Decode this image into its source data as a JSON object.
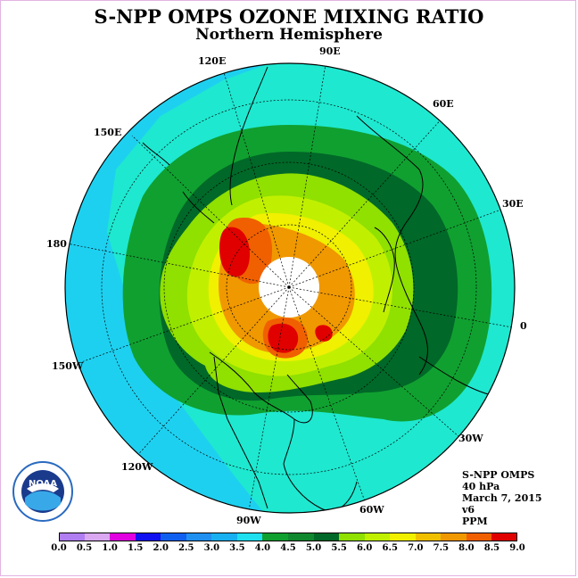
{
  "title": "S-NPP OMPS OZONE MIXING RATIO",
  "subtitle": "Northern Hemisphere",
  "longitude_labels": {
    "e90": "90E",
    "e60": "60E",
    "e30": "30E",
    "zero": "0",
    "w30": "30W",
    "w60": "60W",
    "w90": "90W",
    "w120": "120W",
    "w150": "150W",
    "d180": "180",
    "e150": "150E",
    "e120": "120E"
  },
  "info": {
    "instrument": "S-NPP OMPS",
    "level": "40 hPa",
    "date": "March 7, 2015",
    "version": "v6",
    "units": "PPM"
  },
  "logo": {
    "text": "NOAA",
    "ring_text": "NATIONAL OCEANIC AND ATMOSPHERIC ADMINISTRATION · U.S. DEPARTMENT OF COMMERCE"
  },
  "colorbar": {
    "ticks": [
      "0.0",
      "0.5",
      "1.0",
      "1.5",
      "2.0",
      "2.5",
      "3.0",
      "3.5",
      "4.0",
      "4.5",
      "5.0",
      "5.5",
      "6.0",
      "6.5",
      "7.0",
      "7.5",
      "8.0",
      "8.5",
      "9.0"
    ],
    "colors": [
      "#b07ef0",
      "#d9a8f0",
      "#e000e0",
      "#1010f0",
      "#1060f0",
      "#2090f0",
      "#18b0f0",
      "#20e0f0",
      "#10a030",
      "#108830",
      "#006828",
      "#90e000",
      "#c0f000",
      "#f0f000",
      "#f0c000",
      "#f09800",
      "#f06000",
      "#e00000",
      "#8b5a3c"
    ]
  },
  "map_colors": {
    "ocean_light": "#1ee8d0",
    "cyan": "#1ed0f0",
    "green_light": "#10a030",
    "green_dark": "#006828",
    "lime": "#90e000",
    "yellow_green": "#c0f000",
    "yellow": "#f0f000",
    "orange": "#f09800",
    "red": "#e00000",
    "pole_hole": "#ffffff"
  }
}
